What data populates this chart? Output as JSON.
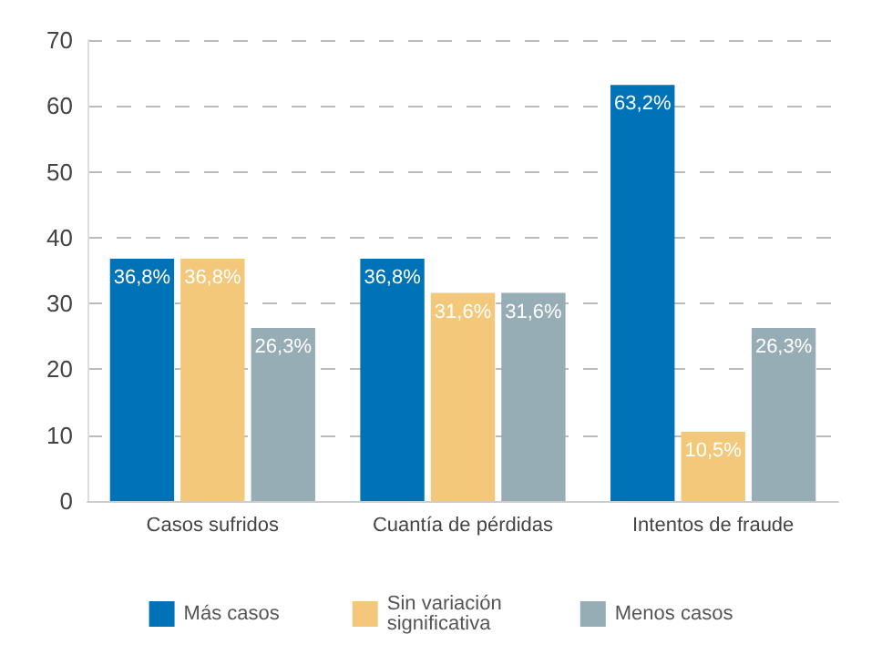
{
  "chart_data": {
    "type": "bar",
    "categories": [
      "Casos sufridos",
      "Cuantía de pérdidas",
      "Intentos de fraude"
    ],
    "series": [
      {
        "name": "Más casos",
        "color": "#0072b8",
        "values": [
          36.8,
          36.8,
          63.2
        ],
        "value_labels": [
          "36,8%",
          "36,8%",
          "63,2%"
        ]
      },
      {
        "name": "Sin variación significativa",
        "color": "#f3c87a",
        "values": [
          36.8,
          31.6,
          10.5
        ],
        "value_labels": [
          "36,8%",
          "31,6%",
          "10,5%"
        ]
      },
      {
        "name": "Menos casos",
        "color": "#97adb5",
        "values": [
          26.3,
          31.6,
          26.3
        ],
        "value_labels": [
          "26,3%",
          "31,6%",
          "26,3%"
        ]
      }
    ],
    "ylim": [
      0,
      70
    ],
    "yticks": [
      0,
      10,
      20,
      30,
      40,
      50,
      60,
      70
    ],
    "grid": "y",
    "legend": "bottom"
  }
}
